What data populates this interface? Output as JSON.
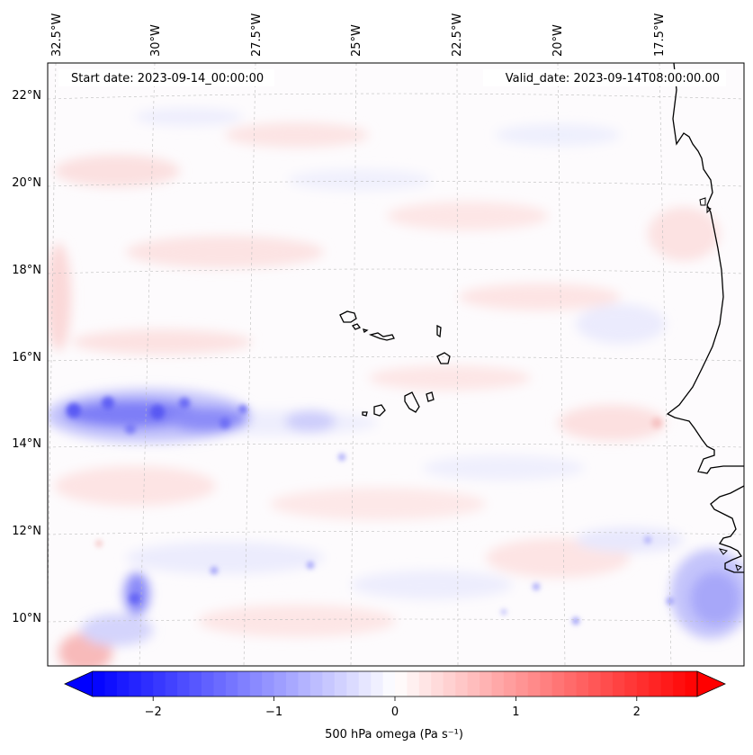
{
  "map": {
    "header_left": "Start date: 2023-09-14_00:00:00",
    "header_right": "Valid_date: 2023-09-14T08:00:00.00",
    "lon_labels": [
      "32.5°W",
      "30°W",
      "27.5°W",
      "25°W",
      "22.5°W",
      "20°W",
      "17.5°W"
    ],
    "lat_labels": [
      "22°N",
      "20°N",
      "18°N",
      "16°N",
      "14°N",
      "12°N",
      "10°N"
    ],
    "lat_range": [
      8.9,
      22.8
    ],
    "lon_range": [
      -32.9,
      -16.4
    ],
    "field_colors": {
      "negative": "#0000ff",
      "zero": "#ffffff",
      "positive": "#ff0000"
    },
    "coastline_color": "#000000"
  },
  "colorbar": {
    "label": "500 hPa omega (Pa s⁻¹)",
    "tick_labels": [
      "−2",
      "−1",
      "0",
      "1",
      "2"
    ],
    "tick_values": [
      -2,
      -1,
      0,
      1,
      2
    ],
    "range": [
      -2.5,
      2.5
    ],
    "levels": 50
  }
}
